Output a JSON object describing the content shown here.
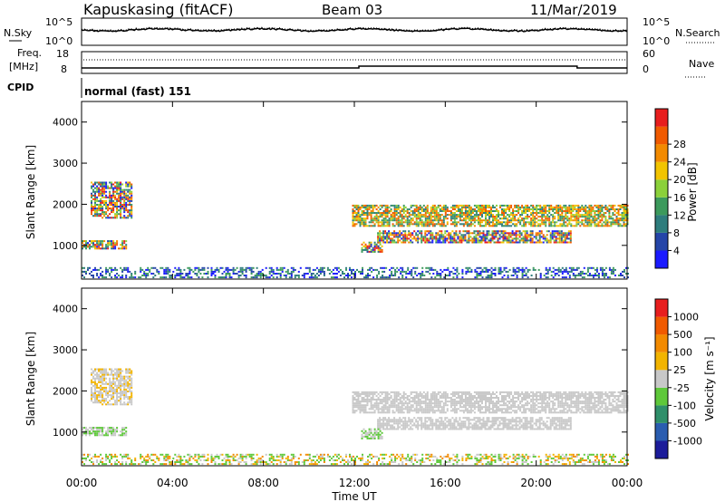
{
  "header": {
    "station": "Kapuskasing (fitACF)",
    "beam": "Beam 03",
    "date": "11/Mar/2019"
  },
  "noise_panel": {
    "left_label": "N.Sky",
    "left_ticks": [
      "10^5",
      "10^0"
    ],
    "right_label": "N.Search",
    "right_ticks": [
      "10^5",
      "10^0"
    ]
  },
  "freq_panel": {
    "left_label_line1": "Freq.",
    "left_label_line2": "[MHz]",
    "left_ticks": [
      "18",
      "8"
    ],
    "right_label": "Nave",
    "right_ticks": [
      "60",
      "0"
    ]
  },
  "cpid_panel": {
    "label": "CPID",
    "value": "normal (fast) 151"
  },
  "power_panel": {
    "ylabel": "Slant Range [km]",
    "yticks": [
      "1000",
      "2000",
      "3000",
      "4000"
    ],
    "colorbar_label": "Power [dB]",
    "colorbar_ticks": [
      "4",
      "8",
      "12",
      "16",
      "20",
      "24",
      "28"
    ],
    "colorbar_colors": [
      "#1a1aff",
      "#2545a8",
      "#2e7d7d",
      "#3c9a5c",
      "#8bd13a",
      "#f2c400",
      "#f28a00",
      "#f05a00",
      "#e81e1e"
    ]
  },
  "velocity_panel": {
    "ylabel": "Slant Range [km]",
    "yticks": [
      "1000",
      "2000",
      "3000",
      "4000"
    ],
    "colorbar_label": "Velocity [m s⁻¹]",
    "colorbar_ticks": [
      "1000",
      "500",
      "100",
      "25",
      "-25",
      "-100",
      "-500",
      "-1000"
    ],
    "colorbar_colors": [
      "#1c1c9a",
      "#2a5db0",
      "#2f8f6a",
      "#5ec83a",
      "#c8c8c8",
      "#f2b400",
      "#f28a00",
      "#f05a00",
      "#e81e1e"
    ]
  },
  "xaxis": {
    "label": "Time UT",
    "ticks": [
      "00:00",
      "04:00",
      "08:00",
      "12:00",
      "16:00",
      "20:00",
      "00:00"
    ]
  },
  "chart_data": {
    "type": "heatmap",
    "x_range_hours": [
      0,
      24
    ],
    "y_range_km": [
      180,
      4500
    ],
    "echo_regions": [
      {
        "t0": 0.0,
        "t1": 2.0,
        "r0": 900,
        "r1": 1100
      },
      {
        "t0": 0.4,
        "t1": 2.2,
        "r0": 1650,
        "r1": 2550
      },
      {
        "t0": 0.0,
        "t1": 24.0,
        "r0": 200,
        "r1": 450
      },
      {
        "t0": 11.9,
        "t1": 24.0,
        "r0": 1450,
        "r1": 1950
      },
      {
        "t0": 13.0,
        "t1": 21.5,
        "r0": 1050,
        "r1": 1350
      },
      {
        "t0": 12.3,
        "t1": 13.2,
        "r0": 820,
        "r1": 1050
      }
    ]
  }
}
